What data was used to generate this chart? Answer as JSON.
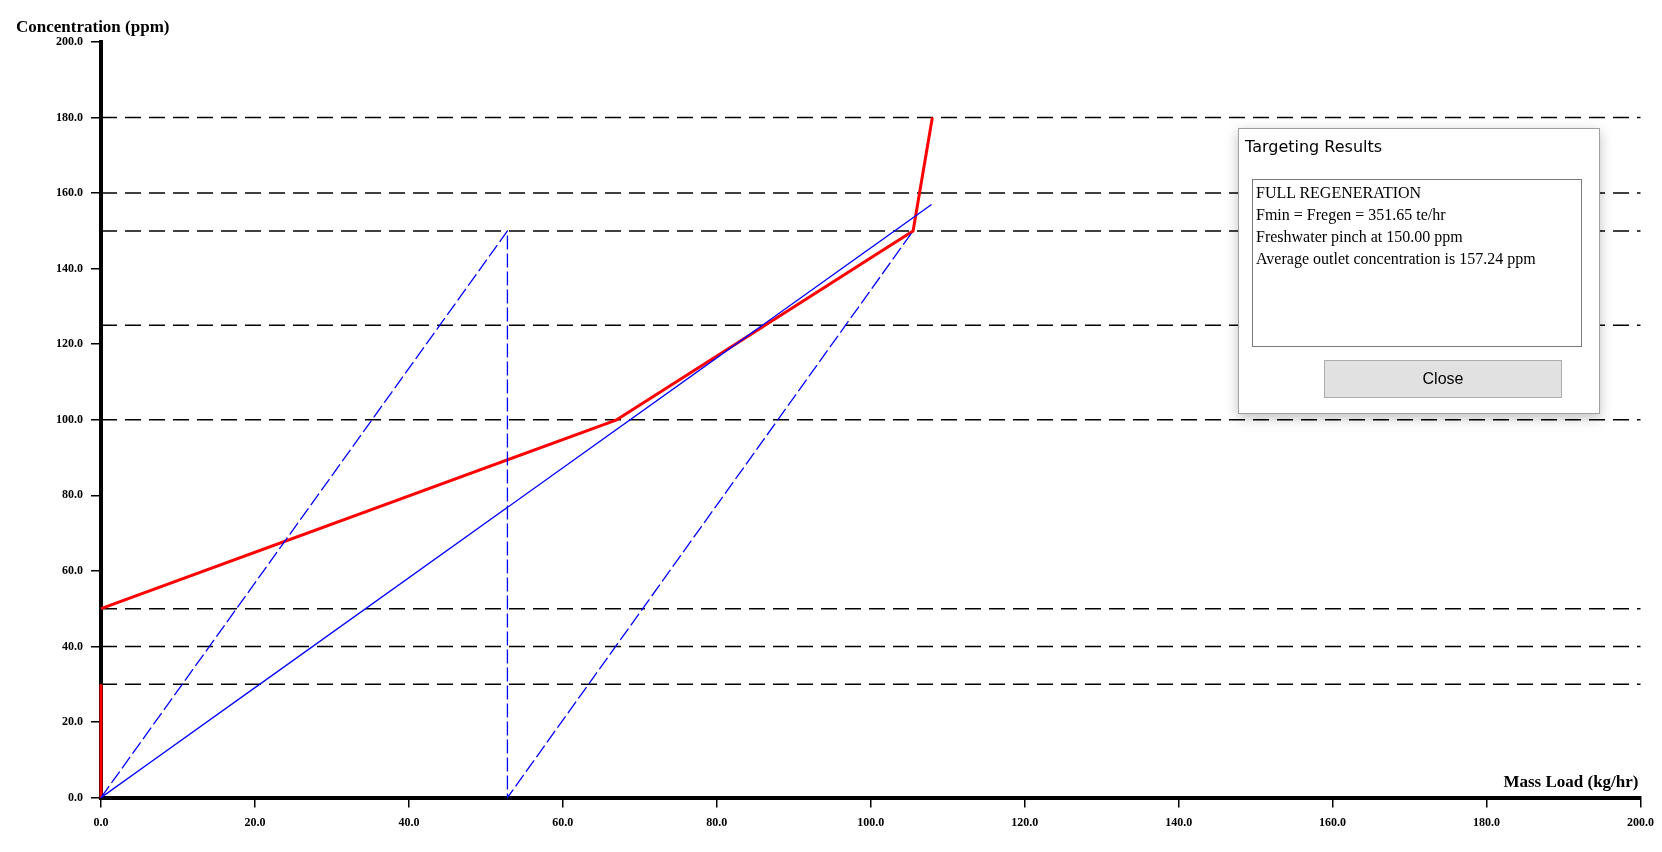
{
  "chart_data": {
    "type": "line",
    "xlabel": "Mass Load (kg/hr)",
    "ylabel": "Concentration (ppm)",
    "xlim": [
      0,
      200
    ],
    "ylim": [
      0,
      200
    ],
    "xticks": [
      {
        "value": 0,
        "label": "0.0"
      },
      {
        "value": 20,
        "label": "20.0"
      },
      {
        "value": 40,
        "label": "40.0"
      },
      {
        "value": 60,
        "label": "60.0"
      },
      {
        "value": 80,
        "label": "80.0"
      },
      {
        "value": 100,
        "label": "100.0"
      },
      {
        "value": 120,
        "label": "120.0"
      },
      {
        "value": 140,
        "label": "140.0"
      },
      {
        "value": 160,
        "label": "160.0"
      },
      {
        "value": 180,
        "label": "180.0"
      },
      {
        "value": 200,
        "label": "200.0"
      }
    ],
    "yticks": [
      {
        "value": 0,
        "label": "0.0"
      },
      {
        "value": 20,
        "label": "20.0"
      },
      {
        "value": 40,
        "label": "40.0"
      },
      {
        "value": 60,
        "label": "60.0"
      },
      {
        "value": 80,
        "label": "80.0"
      },
      {
        "value": 100,
        "label": "100.0"
      },
      {
        "value": 120,
        "label": "120.0"
      },
      {
        "value": 140,
        "label": "140.0"
      },
      {
        "value": 160,
        "label": "160.0"
      },
      {
        "value": 180,
        "label": "180.0"
      },
      {
        "value": 200,
        "label": "200.0"
      }
    ],
    "grid": false,
    "legend": false,
    "marker": "none",
    "series": [
      {
        "color": "#ff0000",
        "line_style": "solid",
        "x": [
          0,
          0
        ],
        "values": [
          0,
          30
        ]
      },
      {
        "color": "#ff0000",
        "line_style": "solid",
        "x": [
          0,
          67,
          105.5,
          108
        ],
        "values": [
          50,
          100,
          150,
          180
        ]
      },
      {
        "color": "#0000ff",
        "line_style": "solid",
        "x": [
          0,
          107.9
        ],
        "values": [
          0,
          157
        ]
      },
      {
        "color": "#0000ff",
        "line_style": "dashed",
        "x": [
          0,
          52.8,
          52.8,
          105.5
        ],
        "values": [
          0,
          150,
          0,
          150
        ]
      }
    ],
    "ref_lines": [
      {
        "axis": "y",
        "value": 30,
        "color": "#000000",
        "line_style": "dashed"
      },
      {
        "axis": "y",
        "value": 40,
        "color": "#000000",
        "line_style": "dashed"
      },
      {
        "axis": "y",
        "value": 50,
        "color": "#000000",
        "line_style": "dashed"
      },
      {
        "axis": "y",
        "value": 100,
        "color": "#000000",
        "line_style": "dashed"
      },
      {
        "axis": "y",
        "value": 125,
        "color": "#000000",
        "line_style": "dashed"
      },
      {
        "axis": "y",
        "value": 150,
        "color": "#000000",
        "line_style": "dashed"
      },
      {
        "axis": "y",
        "value": 160,
        "color": "#000000",
        "line_style": "dashed"
      },
      {
        "axis": "y",
        "value": 180,
        "color": "#000000",
        "line_style": "dashed"
      }
    ],
    "annotations": [
      "Targeting Results",
      "FULL REGENERATION",
      "Fmin = Fregen = 351.65 te/hr",
      "Freshwater pinch at 150.00 ppm",
      "Average outlet concentration is 157.24 ppm",
      "Close"
    ]
  }
}
